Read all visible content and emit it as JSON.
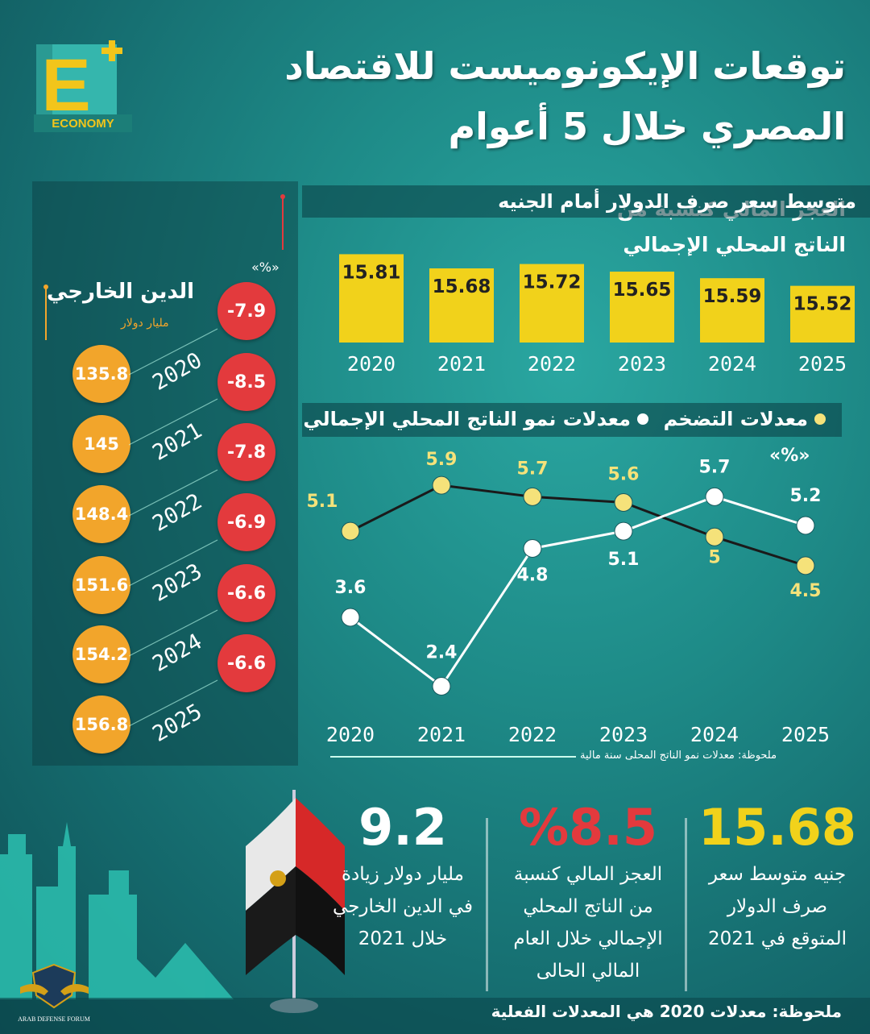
{
  "header": {
    "title_line1": "توقعات الإيكونوميست للاقتصاد",
    "title_line2": "المصري خلال 5 أعوام",
    "logo_letter": "E",
    "logo_text": "ECONOMY"
  },
  "deficit": {
    "title": "العجز المالي كنسبة من الناتج المحلي الإجمالي",
    "unit": "«%»",
    "values": [
      "-7.9",
      "-8.5",
      "-7.8",
      "-6.9",
      "-6.6",
      "-6.6"
    ]
  },
  "debt": {
    "title": "الدين الخارجي",
    "unit": "مليار دولار",
    "values": [
      "135.8",
      "145",
      "148.4",
      "151.6",
      "154.2",
      "156.8"
    ],
    "years": [
      "2020",
      "2021",
      "2022",
      "2023",
      "2024",
      "2025"
    ]
  },
  "chart_data": [
    {
      "type": "bar",
      "title": "متوسط سعر صرف الدولار أمام الجنيه",
      "categories": [
        "2020",
        "2021",
        "2022",
        "2023",
        "2024",
        "2025"
      ],
      "values": [
        15.81,
        15.68,
        15.72,
        15.65,
        15.59,
        15.52
      ],
      "value_labels": [
        "15.81",
        "15.68",
        "15.72",
        "15.65",
        "15.59",
        "15.52"
      ],
      "color": "#f1d21b"
    },
    {
      "type": "line",
      "unit": "«%»",
      "x": [
        "2020",
        "2021",
        "2022",
        "2023",
        "2024",
        "2025"
      ],
      "series": [
        {
          "name": "معدلات التضخم",
          "values": [
            5.1,
            5.9,
            5.7,
            5.6,
            5,
            4.5
          ],
          "labels": [
            "5.1",
            "5.9",
            "5.7",
            "5.6",
            "5",
            "4.5"
          ],
          "color": "#f5e27a"
        },
        {
          "name": "معدلات نمو الناتج المحلي الإجمالي",
          "values": [
            3.6,
            2.4,
            4.8,
            5.1,
            5.7,
            5.2
          ],
          "labels": [
            "3.6",
            "2.4",
            "4.8",
            "5.1",
            "5.7",
            "5.2"
          ],
          "color": "#ffffff"
        }
      ],
      "note": "ملحوظة: معدلات نمو الناتج المحلى سنة مالية"
    }
  ],
  "stats": [
    {
      "value": "15.68",
      "desc": "جنيه متوسط سعر صرف الدولار المتوقع في 2021",
      "color": "#f1d21b"
    },
    {
      "value": "%8.5",
      "desc": "العجز المالي كنسبة من الناتج المحلي الإجمالي خلال العام المالي الحالى",
      "color": "#e33a3d"
    },
    {
      "value": "9.2",
      "desc": "مليار دولار زيادة في الدين الخارجي خلال 2021",
      "color": "#ffffff"
    }
  ],
  "footer": {
    "note": "ملحوظة: معدلات 2020 هي المعدلات الفعلية"
  },
  "badge": {
    "text": "ARAB DEFENSE FORUM"
  }
}
